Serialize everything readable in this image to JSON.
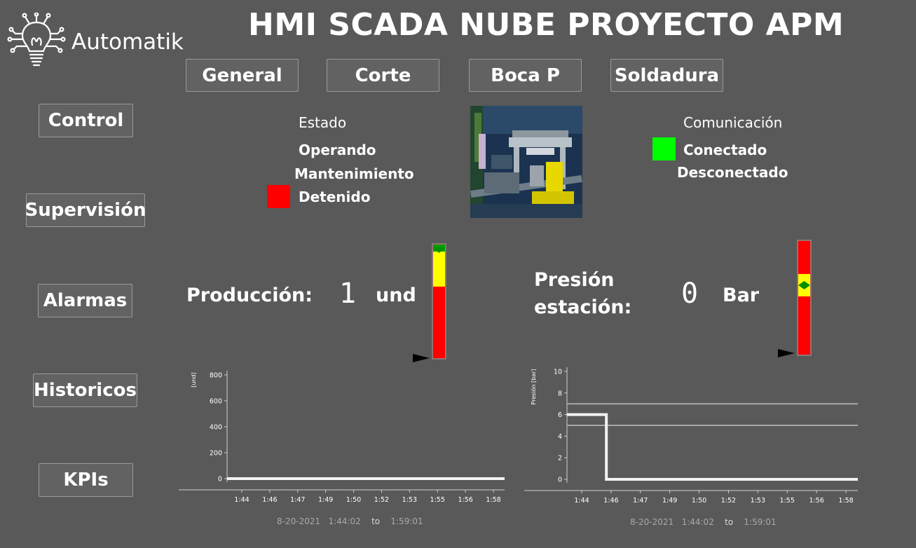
{
  "logo": {
    "text": "Automatik",
    "icon": "lightbulb-circuit-icon"
  },
  "header": {
    "title": "HMI SCADA NUBE PROYECTO APM"
  },
  "top_tabs": [
    {
      "label": "General"
    },
    {
      "label": "Corte"
    },
    {
      "label": "Boca P"
    },
    {
      "label": "Soldadura"
    }
  ],
  "side_nav": [
    {
      "label": "Control"
    },
    {
      "label": "Supervisión"
    },
    {
      "label": "Alarmas"
    },
    {
      "label": "Historicos"
    },
    {
      "label": "KPIs"
    }
  ],
  "estado": {
    "label": "Estado",
    "options": [
      "Operando",
      "Mantenimiento",
      "Detenido"
    ],
    "active": "Detenido",
    "active_color": "#ff0000"
  },
  "comunicacion": {
    "label": "Comunicación",
    "options": [
      "Conectado",
      "Desconectado"
    ],
    "active": "Conectado",
    "active_color": "#00ff00"
  },
  "machine_image": {
    "icon": "machine-press-render"
  },
  "produccion": {
    "label": "Producción:",
    "value": "1",
    "unit": "und",
    "gauge_level": 0.0
  },
  "presion": {
    "label_line1": "Presión",
    "label_line2": "estación:",
    "value": "0",
    "unit": "Bar",
    "gauge_level": 0.0
  },
  "colors": {
    "background": "#595959",
    "gauge_red": "#ff0000",
    "gauge_yellow": "#ffff00",
    "gauge_green": "#00a000"
  },
  "chart_data": [
    {
      "type": "line",
      "ylabel": "[und]",
      "ylim": [
        0,
        800
      ],
      "yticks": [
        "800",
        "600",
        "400",
        "200",
        "0"
      ],
      "xticks": [
        "1:44",
        "1:46",
        "1:47",
        "1:49",
        "1:50",
        "1:52",
        "1:53",
        "1:55",
        "1:56",
        "1:58"
      ],
      "series": [
        {
          "x": [
            "1:43",
            "1:59"
          ],
          "values": [
            0,
            0
          ]
        }
      ],
      "footer": {
        "date": "8-20-2021",
        "from": "1:44:02",
        "to_label": "to",
        "to": "1:59:01"
      }
    },
    {
      "type": "line",
      "ylabel": "Presión [bar]",
      "ylim": [
        0,
        10
      ],
      "yticks": [
        "10",
        "8",
        "6",
        "4",
        "2",
        "0"
      ],
      "xticks": [
        "1:44",
        "1:46",
        "1:47",
        "1:49",
        "1:50",
        "1:52",
        "1:53",
        "1:55",
        "1:56",
        "1:58"
      ],
      "limit_lines": [
        7,
        5
      ],
      "series": [
        {
          "x": [
            "1:43",
            "1:45:10",
            "1:45:10",
            "1:59"
          ],
          "values": [
            6,
            6,
            0,
            0
          ]
        }
      ],
      "footer": {
        "date": "8-20-2021",
        "from": "1:44:02",
        "to_label": "to",
        "to": "1:59:01"
      }
    }
  ]
}
